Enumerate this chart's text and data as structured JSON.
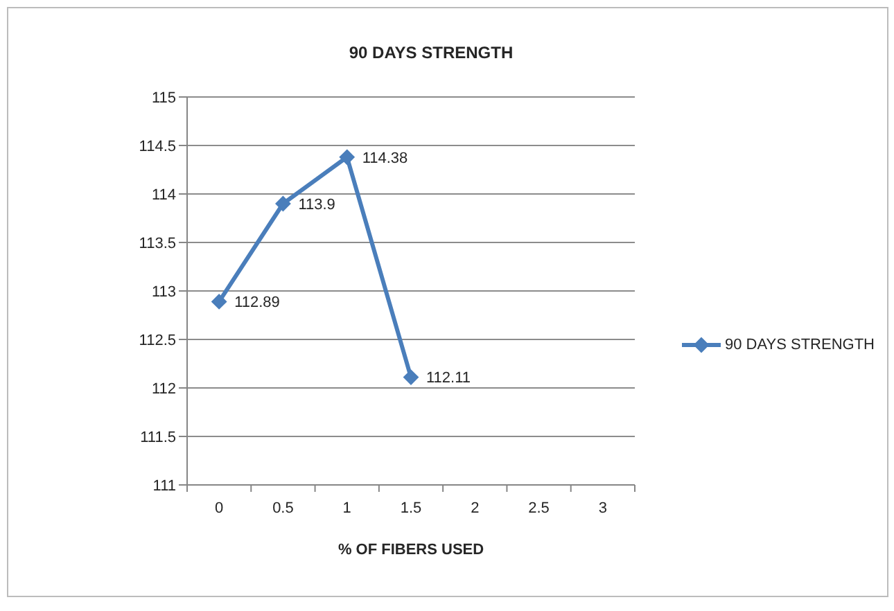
{
  "chart_data": {
    "type": "line",
    "title": "90 DAYS STRENGTH",
    "xlabel": "% OF FIBERS USED",
    "categories": [
      "0",
      "0.5",
      "1",
      "1.5",
      "2",
      "2.5",
      "3"
    ],
    "series": [
      {
        "name": "90 DAYS STRENGTH",
        "color": "#4a7ebb",
        "values": [
          112.89,
          113.9,
          114.38,
          112.11,
          null,
          null,
          null
        ]
      }
    ],
    "ylim": [
      111,
      115
    ],
    "yticks": [
      111,
      111.5,
      112,
      112.5,
      113,
      113.5,
      114,
      114.5,
      115
    ],
    "grid": "y",
    "legend": "right",
    "marker": "diamond",
    "line_style": "solid",
    "data_labels": true
  }
}
